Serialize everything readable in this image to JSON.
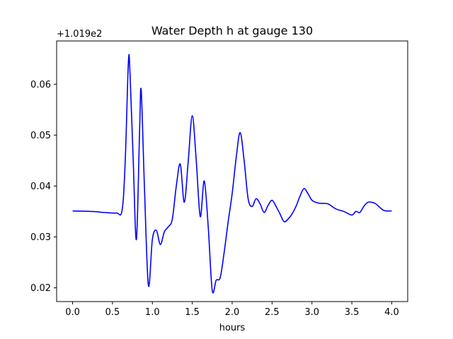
{
  "chart_data": {
    "type": "line",
    "title": "Water Depth h at gauge 130",
    "xlabel": "hours",
    "ylabel": "",
    "y_offset_label": "+1.019e2",
    "xlim": [
      -0.2,
      4.2
    ],
    "ylim": [
      0.0173,
      0.0685
    ],
    "x_ticks": [
      0.0,
      0.5,
      1.0,
      1.5,
      2.0,
      2.5,
      3.0,
      3.5,
      4.0
    ],
    "x_tick_labels": [
      "0.0",
      "0.5",
      "1.0",
      "1.5",
      "2.0",
      "2.5",
      "3.0",
      "3.5",
      "4.0"
    ],
    "y_ticks": [
      0.02,
      0.03,
      0.04,
      0.05,
      0.06
    ],
    "y_tick_labels": [
      "0.02",
      "0.03",
      "0.04",
      "0.05",
      "0.06"
    ],
    "grid": false,
    "series": [
      {
        "color": "#0000ff",
        "x": [
          0.0,
          0.25,
          0.4,
          0.55,
          0.62,
          0.66,
          0.7,
          0.72,
          0.76,
          0.8,
          0.84,
          0.86,
          0.9,
          0.95,
          1.0,
          1.05,
          1.1,
          1.15,
          1.2,
          1.25,
          1.3,
          1.35,
          1.4,
          1.45,
          1.5,
          1.55,
          1.6,
          1.65,
          1.7,
          1.75,
          1.8,
          1.85,
          1.9,
          1.95,
          2.0,
          2.05,
          2.1,
          2.15,
          2.2,
          2.25,
          2.3,
          2.35,
          2.4,
          2.45,
          2.5,
          2.55,
          2.6,
          2.65,
          2.7,
          2.75,
          2.8,
          2.85,
          2.9,
          2.95,
          3.0,
          3.05,
          3.1,
          3.2,
          3.3,
          3.4,
          3.5,
          3.55,
          3.6,
          3.65,
          3.7,
          3.75,
          3.8,
          3.85,
          3.9,
          3.95,
          4.0
        ],
        "y": [
          0.0351,
          0.035,
          0.0348,
          0.0347,
          0.0352,
          0.045,
          0.0645,
          0.062,
          0.045,
          0.0295,
          0.051,
          0.0588,
          0.04,
          0.0205,
          0.0295,
          0.0313,
          0.0285,
          0.031,
          0.032,
          0.0335,
          0.04,
          0.0443,
          0.0368,
          0.045,
          0.0538,
          0.045,
          0.034,
          0.041,
          0.032,
          0.0195,
          0.0215,
          0.022,
          0.027,
          0.033,
          0.0385,
          0.0455,
          0.0505,
          0.045,
          0.0375,
          0.036,
          0.0375,
          0.0365,
          0.0348,
          0.0362,
          0.0372,
          0.036,
          0.0345,
          0.033,
          0.0335,
          0.0345,
          0.036,
          0.038,
          0.0395,
          0.0385,
          0.0372,
          0.0368,
          0.0366,
          0.0365,
          0.0355,
          0.035,
          0.0343,
          0.035,
          0.0348,
          0.036,
          0.0368,
          0.0368,
          0.0365,
          0.0358,
          0.0352,
          0.0351,
          0.0351
        ]
      }
    ]
  }
}
